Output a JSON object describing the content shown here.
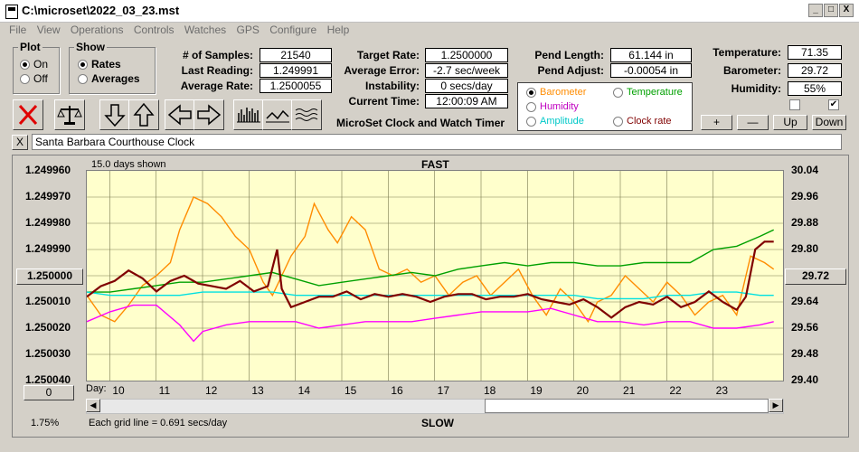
{
  "window": {
    "title": "C:\\microset\\2022_03_23.mst",
    "min": "_",
    "max": "□",
    "close": "X"
  },
  "menu": [
    "File",
    "View",
    "Operations",
    "Controls",
    "Watches",
    "GPS",
    "Configure",
    "Help"
  ],
  "plot_group": {
    "label": "Plot",
    "on": "On",
    "off": "Off",
    "selected": "On"
  },
  "show_group": {
    "label": "Show",
    "rates": "Rates",
    "averages": "Averages",
    "selected": "Rates"
  },
  "stats": {
    "samples_label": "# of Samples:",
    "samples": "21540",
    "last_reading_label": "Last Reading:",
    "last_reading": "1.249991",
    "average_rate_label": "Average Rate:",
    "average_rate": "1.2500055"
  },
  "rates": {
    "target_label": "Target Rate:",
    "target": "1.2500000",
    "avg_error_label": "Average Error:",
    "avg_error": "-2.7 sec/week",
    "instability_label": "Instability:",
    "instability": "0 secs/day",
    "current_time_label": "Current Time:",
    "current_time": "12:00:09 AM"
  },
  "app_name": "MicroSet Clock and Watch Timer",
  "pend": {
    "length_label": "Pend Length:",
    "length": "61.144 in",
    "adjust_label": "Pend Adjust:",
    "adjust": "-0.00054 in"
  },
  "series_select": {
    "barometer": "Barometer",
    "temperature": "Temperature",
    "humidity": "Humidity",
    "amplitude": "Amplitude",
    "clock_rate": "Clock rate",
    "selected": "Barometer"
  },
  "env": {
    "temp_label": "Temperature:",
    "temp": "71.35",
    "baro_label": "Barometer:",
    "baro": "29.72",
    "hum_label": "Humidity:",
    "hum": "55%"
  },
  "adjust_buttons": {
    "plus": "+",
    "minus": "—",
    "up": "Up",
    "down": "Down"
  },
  "description": {
    "close": "X",
    "value": "Santa Barbara Courthouse Clock"
  },
  "chart_labels": {
    "days_shown": "15.0 days shown",
    "fast": "FAST",
    "slow": "SLOW",
    "grid_note": "Each grid line = 0.691 secs/day",
    "percent": "1.75%",
    "left_button": "1.250000",
    "right_button": "29.72",
    "bottom_left_button": "0",
    "day_label": "Day:"
  },
  "colors": {
    "barometer": "#ff8c00",
    "temperature": "#00a000",
    "humidity": "#ff00ff",
    "amplitude": "#00e0e0",
    "clock_rate": "#800000",
    "plot_bg": "#ffffcc"
  },
  "chart_data": {
    "type": "line",
    "x_ticks": [
      "10",
      "11",
      "12",
      "13",
      "14",
      "15",
      "16",
      "17",
      "18",
      "19",
      "20",
      "21",
      "22",
      "23"
    ],
    "xlim": [
      9,
      24
    ],
    "y_left_ticks": [
      "1.249960",
      "1.249970",
      "1.249980",
      "1.249990",
      "1.250000",
      "1.250010",
      "1.250020",
      "1.250030",
      "1.250040"
    ],
    "y_left_range": [
      1.24996,
      1.25004
    ],
    "y_right_ticks": [
      "30.04",
      "29.96",
      "29.88",
      "29.80",
      "29.72",
      "29.64",
      "29.56",
      "29.48",
      "29.40"
    ],
    "y_right_range": [
      29.4,
      30.04
    ],
    "series": [
      {
        "name": "Barometer",
        "axis": "right",
        "x": [
          9.0,
          9.3,
          9.6,
          9.9,
          10.2,
          10.5,
          10.8,
          11.0,
          11.3,
          11.6,
          11.9,
          12.2,
          12.5,
          12.8,
          13.0,
          13.2,
          13.4,
          13.7,
          13.9,
          14.2,
          14.4,
          14.7,
          15.0,
          15.3,
          15.6,
          15.9,
          16.2,
          16.5,
          16.8,
          17.1,
          17.4,
          17.7,
          18.0,
          18.3,
          18.6,
          18.9,
          19.2,
          19.5,
          19.8,
          20.0,
          20.3,
          20.6,
          20.9,
          21.2,
          21.5,
          21.8,
          22.1,
          22.4,
          22.7,
          23.0,
          23.3,
          23.6,
          23.8
        ],
        "y": [
          29.66,
          29.6,
          29.58,
          29.63,
          29.69,
          29.72,
          29.76,
          29.86,
          29.96,
          29.94,
          29.9,
          29.84,
          29.8,
          29.7,
          29.66,
          29.72,
          29.78,
          29.84,
          29.94,
          29.86,
          29.82,
          29.9,
          29.86,
          29.74,
          29.72,
          29.74,
          29.7,
          29.72,
          29.66,
          29.7,
          29.72,
          29.66,
          29.7,
          29.74,
          29.66,
          29.6,
          29.68,
          29.64,
          29.58,
          29.64,
          29.66,
          29.72,
          29.68,
          29.64,
          29.7,
          29.66,
          29.6,
          29.64,
          29.66,
          29.6,
          29.78,
          29.76,
          29.74
        ]
      },
      {
        "name": "Temperature",
        "axis": "right",
        "x": [
          9.0,
          9.5,
          10.0,
          10.5,
          11.0,
          11.5,
          12.0,
          12.5,
          13.0,
          13.5,
          14.0,
          14.5,
          15.0,
          15.5,
          16.0,
          16.5,
          17.0,
          17.5,
          18.0,
          18.5,
          19.0,
          19.5,
          20.0,
          20.5,
          21.0,
          21.5,
          22.0,
          22.5,
          23.0,
          23.5,
          23.8
        ],
        "y": [
          29.67,
          29.67,
          29.68,
          29.69,
          29.7,
          29.7,
          29.71,
          29.72,
          29.73,
          29.71,
          29.69,
          29.7,
          29.71,
          29.72,
          29.73,
          29.72,
          29.74,
          29.75,
          29.76,
          29.75,
          29.76,
          29.76,
          29.75,
          29.75,
          29.76,
          29.76,
          29.76,
          29.8,
          29.81,
          29.84,
          29.86
        ]
      },
      {
        "name": "Humidity",
        "axis": "right",
        "x": [
          9.0,
          9.5,
          10.0,
          10.5,
          11.0,
          11.3,
          11.5,
          12.0,
          12.5,
          13.0,
          13.5,
          14.0,
          14.5,
          15.0,
          15.5,
          16.0,
          16.5,
          17.0,
          17.5,
          18.0,
          18.5,
          19.0,
          19.5,
          20.0,
          20.5,
          21.0,
          21.5,
          22.0,
          22.5,
          23.0,
          23.5,
          23.8
        ],
        "y": [
          29.58,
          29.61,
          29.63,
          29.63,
          29.57,
          29.52,
          29.55,
          29.57,
          29.58,
          29.58,
          29.58,
          29.56,
          29.57,
          29.58,
          29.58,
          29.58,
          29.59,
          29.6,
          29.61,
          29.61,
          29.61,
          29.62,
          29.6,
          29.58,
          29.58,
          29.57,
          29.58,
          29.58,
          29.56,
          29.56,
          29.57,
          29.58
        ]
      },
      {
        "name": "Amplitude",
        "axis": "right",
        "x": [
          9.0,
          9.5,
          10.0,
          10.5,
          11.0,
          11.5,
          12.0,
          12.5,
          13.0,
          13.5,
          14.0,
          14.5,
          15.0,
          15.5,
          16.0,
          16.5,
          17.0,
          17.5,
          18.0,
          18.5,
          19.0,
          19.5,
          20.0,
          20.5,
          21.0,
          21.5,
          22.0,
          22.5,
          23.0,
          23.5,
          23.8
        ],
        "y": [
          29.67,
          29.66,
          29.66,
          29.66,
          29.66,
          29.67,
          29.67,
          29.67,
          29.67,
          29.66,
          29.66,
          29.66,
          29.66,
          29.66,
          29.66,
          29.66,
          29.66,
          29.66,
          29.66,
          29.66,
          29.66,
          29.66,
          29.65,
          29.65,
          29.65,
          29.66,
          29.66,
          29.67,
          29.67,
          29.66,
          29.66
        ]
      },
      {
        "name": "Clock rate",
        "axis": "left",
        "x": [
          9.0,
          9.3,
          9.6,
          9.9,
          10.2,
          10.5,
          10.8,
          11.1,
          11.4,
          11.7,
          12.0,
          12.3,
          12.6,
          12.9,
          13.1,
          13.2,
          13.4,
          13.7,
          14.0,
          14.3,
          14.6,
          14.9,
          15.2,
          15.5,
          15.8,
          16.1,
          16.4,
          16.7,
          17.0,
          17.3,
          17.6,
          17.9,
          18.2,
          18.5,
          18.8,
          19.1,
          19.4,
          19.7,
          20.0,
          20.3,
          20.6,
          20.9,
          21.2,
          21.5,
          21.8,
          22.1,
          22.4,
          22.7,
          23.0,
          23.2,
          23.4,
          23.6,
          23.8
        ],
        "y": [
          1.250008,
          1.250004,
          1.250002,
          1.249998,
          1.250001,
          1.250006,
          1.250002,
          1.25,
          1.250003,
          1.250004,
          1.250005,
          1.250002,
          1.250006,
          1.250004,
          1.24999,
          1.250005,
          1.250012,
          1.25001,
          1.250008,
          1.250008,
          1.250006,
          1.250009,
          1.250007,
          1.250008,
          1.250007,
          1.250008,
          1.25001,
          1.250008,
          1.250007,
          1.250007,
          1.250009,
          1.250008,
          1.250008,
          1.250007,
          1.250009,
          1.25001,
          1.250011,
          1.250009,
          1.250012,
          1.250016,
          1.250012,
          1.25001,
          1.250011,
          1.250008,
          1.250012,
          1.25001,
          1.250006,
          1.25001,
          1.250013,
          1.250008,
          1.24999,
          1.249987,
          1.249987
        ]
      }
    ]
  }
}
